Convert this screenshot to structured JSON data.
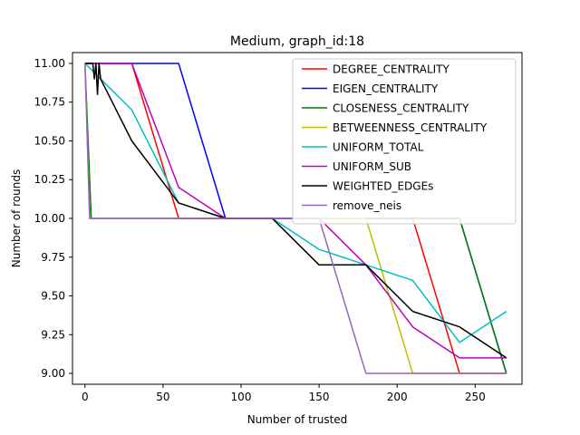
{
  "chart_data": {
    "type": "line",
    "title": "Medium, graph_id:18",
    "xlabel": "Number of trusted",
    "ylabel": "Number of rounds",
    "xlim": [
      -8,
      280
    ],
    "ylim": [
      8.93,
      11.07
    ],
    "xticks": [
      0,
      50,
      100,
      150,
      200,
      250
    ],
    "xtick_labels": [
      "0",
      "50",
      "100",
      "150",
      "200",
      "250"
    ],
    "yticks": [
      9.0,
      9.25,
      9.5,
      9.75,
      10.0,
      10.25,
      10.5,
      10.75,
      11.0
    ],
    "ytick_labels": [
      "9.00",
      "9.25",
      "9.50",
      "9.75",
      "10.00",
      "10.25",
      "10.50",
      "10.75",
      "11.00"
    ],
    "grid": false,
    "legend_position": "top-right",
    "series": [
      {
        "name": "DEGREE_CENTRALITY",
        "color": "#ff0000",
        "x": [
          0,
          30,
          60,
          90,
          120,
          150,
          180,
          210,
          240,
          270
        ],
        "y": [
          11,
          11,
          10,
          10,
          10,
          10,
          10,
          10,
          9,
          9
        ]
      },
      {
        "name": "EIGEN_CENTRALITY",
        "color": "#0000ff",
        "x": [
          0,
          60,
          90,
          120,
          150,
          180,
          210,
          240,
          270
        ],
        "y": [
          11,
          11,
          10,
          10,
          10,
          10,
          10,
          10,
          9
        ]
      },
      {
        "name": "CLOSENESS_CENTRALITY",
        "color": "#008000",
        "x": [
          0,
          4,
          30,
          60,
          90,
          120,
          150,
          180,
          210,
          240,
          270
        ],
        "y": [
          11,
          10,
          10,
          10,
          10,
          10,
          10,
          10,
          10,
          10,
          9
        ]
      },
      {
        "name": "BETWEENNESS_CENTRALITY",
        "color": "#bfbf00",
        "x": [
          0,
          3,
          30,
          60,
          90,
          120,
          150,
          180,
          210,
          240,
          270
        ],
        "y": [
          11,
          10,
          10,
          10,
          10,
          10,
          10,
          10,
          9,
          9,
          9
        ]
      },
      {
        "name": "UNIFORM_TOTAL",
        "color": "#00bfbf",
        "x": [
          0,
          10,
          30,
          60,
          90,
          120,
          150,
          180,
          210,
          240,
          270
        ],
        "y": [
          11,
          10.9,
          10.7,
          10.1,
          10,
          10,
          9.8,
          9.7,
          9.6,
          9.2,
          9.4
        ]
      },
      {
        "name": "UNIFORM_SUB",
        "color": "#bf00bf",
        "x": [
          0,
          30,
          60,
          90,
          120,
          150,
          180,
          210,
          240,
          270
        ],
        "y": [
          11,
          11,
          10.2,
          10,
          10,
          10,
          9.7,
          9.3,
          9.1,
          9.1
        ]
      },
      {
        "name": "WEIGHTED_EDGEs",
        "color": "#000000",
        "x": [
          0,
          5,
          6,
          7,
          8,
          9,
          10,
          30,
          60,
          90,
          120,
          150,
          180,
          210,
          240,
          270
        ],
        "y": [
          11,
          11,
          10.9,
          11,
          10.8,
          11,
          10.9,
          10.5,
          10.1,
          10,
          10,
          9.7,
          9.7,
          9.4,
          9.3,
          9.1
        ]
      },
      {
        "name": "remove_neis",
        "color": "#9467bd",
        "x": [
          0,
          3,
          30,
          60,
          90,
          120,
          150,
          180,
          210,
          240,
          270
        ],
        "y": [
          11,
          10,
          10,
          10,
          10,
          10,
          10,
          9,
          9,
          9,
          9
        ]
      }
    ]
  }
}
